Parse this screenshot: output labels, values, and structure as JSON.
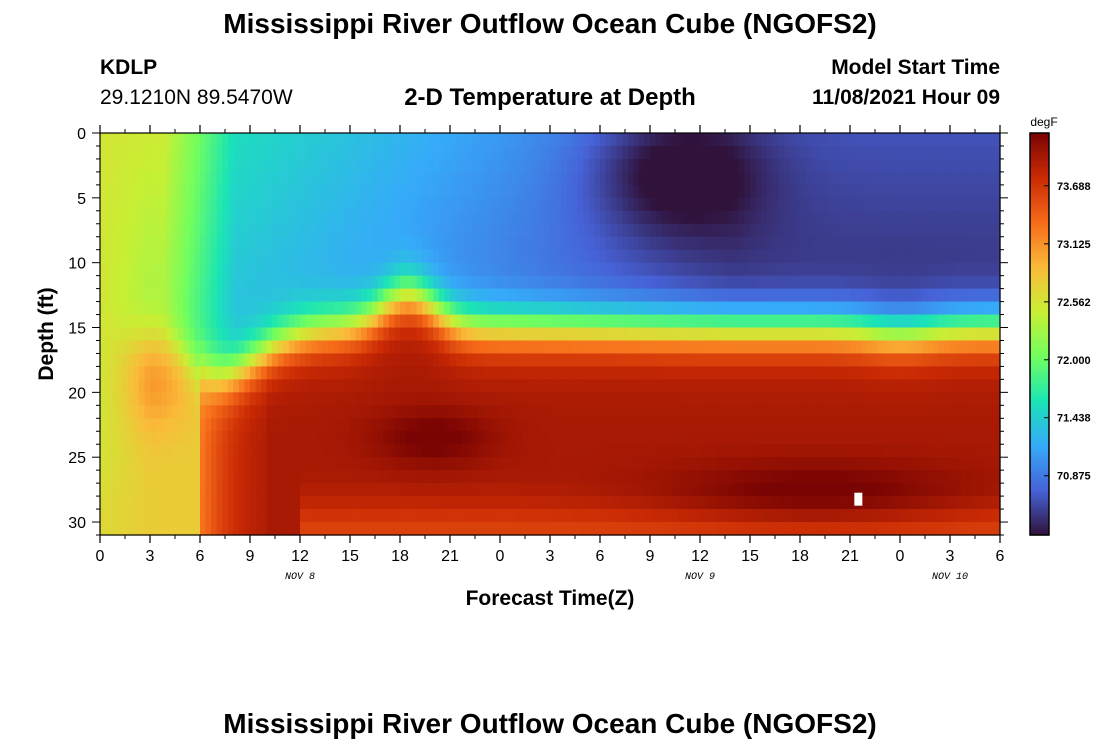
{
  "page": {
    "title": "Mississippi River Outflow Ocean Cube (NGOFS2)",
    "station_id": "KDLP",
    "coordinates": "29.1210N  89.5470W",
    "subtitle": "2-D Temperature at Depth",
    "model_start_label": "Model Start Time",
    "model_start_value": "11/08/2021 Hour 09",
    "footer_title": "Mississippi River Outflow Ocean Cube (NGOFS2)"
  },
  "chart_data": {
    "type": "heatmap",
    "title": "2-D Temperature at Depth",
    "xlabel": "Forecast Time(Z)",
    "ylabel": "Depth (ft)",
    "x_tick_labels": [
      "0",
      "3",
      "6",
      "9",
      "12",
      "15",
      "18",
      "21",
      "0",
      "3",
      "6",
      "9",
      "12",
      "15",
      "18",
      "21",
      "0",
      "3",
      "6"
    ],
    "x_hours_range": [
      0,
      54
    ],
    "y_ticks": [
      0,
      5,
      10,
      15,
      20,
      25,
      30
    ],
    "y_range": [
      0,
      31
    ],
    "y_inverted": true,
    "date_labels": [
      {
        "label": "NOV 8",
        "hour": 12
      },
      {
        "label": "NOV 9",
        "hour": 36
      },
      {
        "label": "NOV 10",
        "hour": 51
      }
    ],
    "colorbar": {
      "unit": "degF",
      "ticks": [
        "73.688",
        "73.125",
        "72.562",
        "72.000",
        "71.438",
        "70.875"
      ],
      "tick_values": [
        73.688,
        73.125,
        72.562,
        72.0,
        71.438,
        70.875
      ],
      "range": [
        70.3,
        74.2
      ],
      "colors": [
        "#30123b",
        "#4662d7",
        "#36aaf9",
        "#1ae4b6",
        "#72fe5e",
        "#c8ef34",
        "#faba39",
        "#f66b19",
        "#ca2a04",
        "#7a0403"
      ]
    },
    "marker": {
      "hour": 45.5,
      "depth": 28.2,
      "color": "#ffffff"
    }
  }
}
